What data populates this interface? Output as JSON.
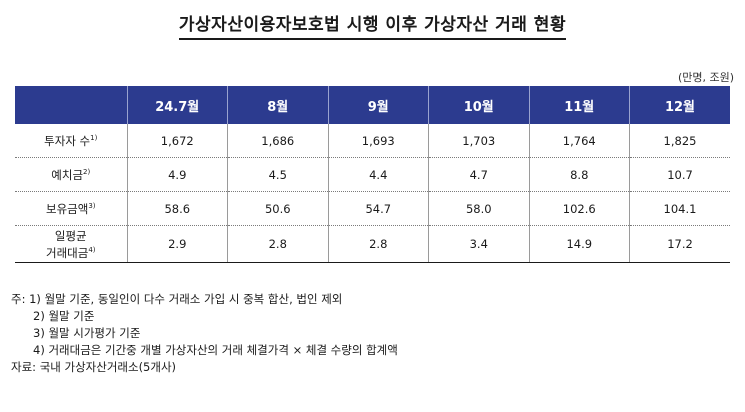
{
  "title": "가상자산이용자보호법 시행 이후 가상자산 거래 현황",
  "unit": "(만명, 조원)",
  "table": {
    "columns": [
      "",
      "24.7월",
      "8월",
      "9월",
      "10월",
      "11월",
      "12월"
    ],
    "rows": [
      {
        "label": "투자자 수",
        "note": "1)",
        "values": [
          "1,672",
          "1,686",
          "1,693",
          "1,703",
          "1,764",
          "1,825"
        ]
      },
      {
        "label": "예치금",
        "note": "2)",
        "values": [
          "4.9",
          "4.5",
          "4.4",
          "4.7",
          "8.8",
          "10.7"
        ]
      },
      {
        "label": "보유금액",
        "note": "3)",
        "values": [
          "58.6",
          "50.6",
          "54.7",
          "58.0",
          "102.6",
          "104.1"
        ]
      },
      {
        "label": "일평균",
        "label2": "거래대금",
        "note": "4)",
        "values": [
          "2.9",
          "2.8",
          "2.8",
          "3.4",
          "14.9",
          "17.2"
        ]
      }
    ]
  },
  "notes": [
    "주: 1) 월말 기준, 동일인이 다수 거래소 가입 시 중복 합산, 법인 제외",
    "2) 월말 기준",
    "3) 월말 시가평가 기준",
    "4) 거래대금은 기간중 개별 가상자산의 거래 체결가격 × 체결 수량의 합계액",
    "자료: 국내 가상자산거래소(5개사)"
  ]
}
